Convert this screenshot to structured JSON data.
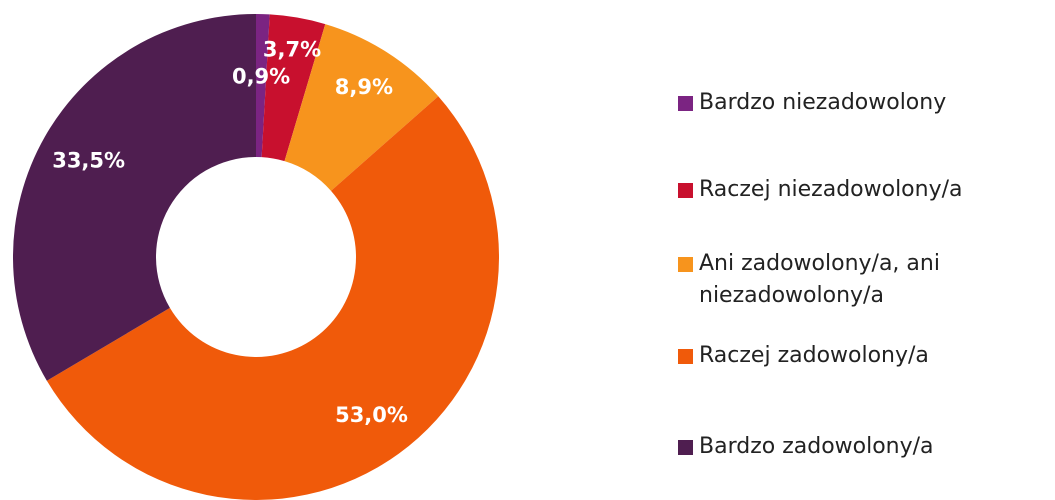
{
  "chart_data": {
    "type": "donut",
    "categories": [
      "Bardzo niezadowolony",
      "Raczej niezadowolony/a",
      "Ani zadowolony/a, ani niezadowolony/a",
      "Raczej zadowolony/a",
      "Bardzo zadowolony/a"
    ],
    "values": [
      0.9,
      3.7,
      8.9,
      53.0,
      33.5
    ],
    "value_labels": [
      "0,9%",
      "3,7%",
      "8,9%",
      "53,0%",
      "33,5%"
    ],
    "colors": [
      "#7b2482",
      "#c8102e",
      "#f7941d",
      "#f05a0a",
      "#4f1e50"
    ],
    "legend": "right"
  }
}
